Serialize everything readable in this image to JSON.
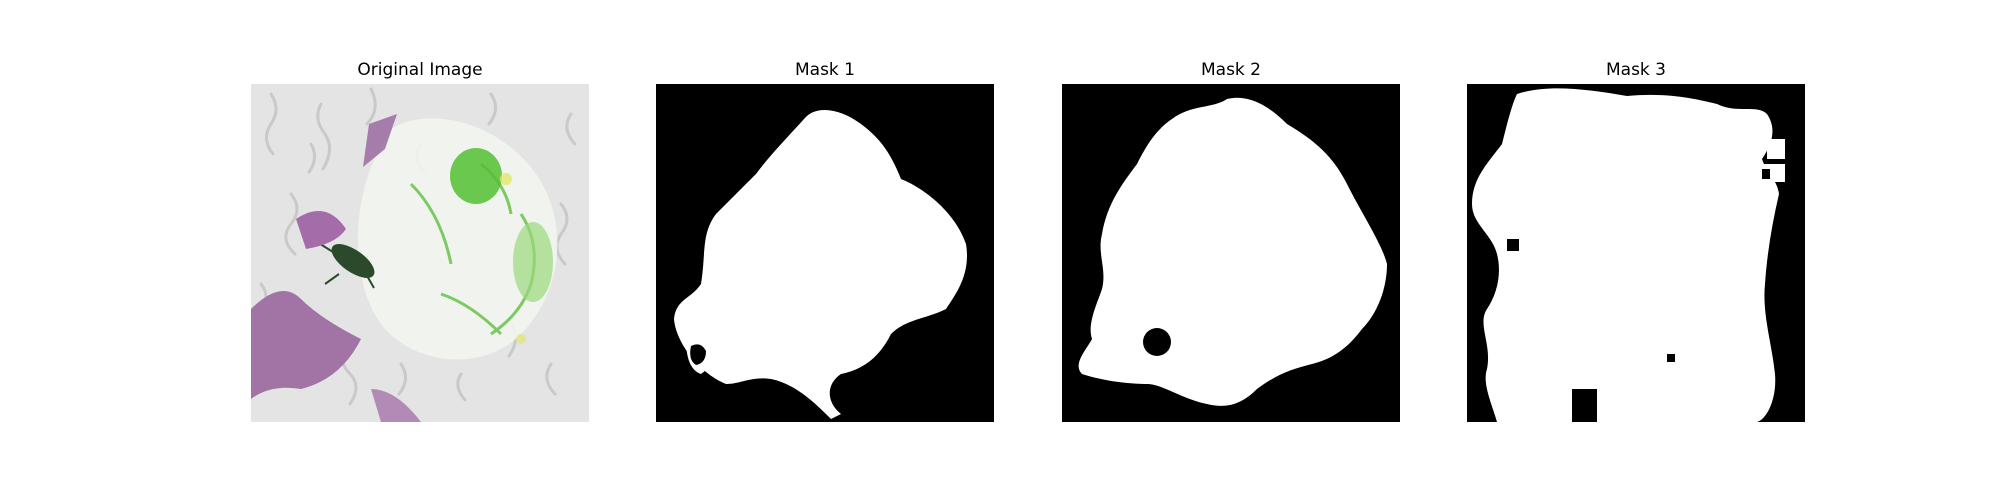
{
  "panels": [
    {
      "title": "Original Image"
    },
    {
      "title": "Mask 1"
    },
    {
      "title": "Mask 2"
    },
    {
      "title": "Mask 3"
    }
  ],
  "colors": {
    "mask_background": "#000000",
    "mask_foreground": "#ffffff",
    "photo_background": "#e4e4e4",
    "purple_fabric": "#a87aa8",
    "green_leaf": "#5fbf3c"
  }
}
